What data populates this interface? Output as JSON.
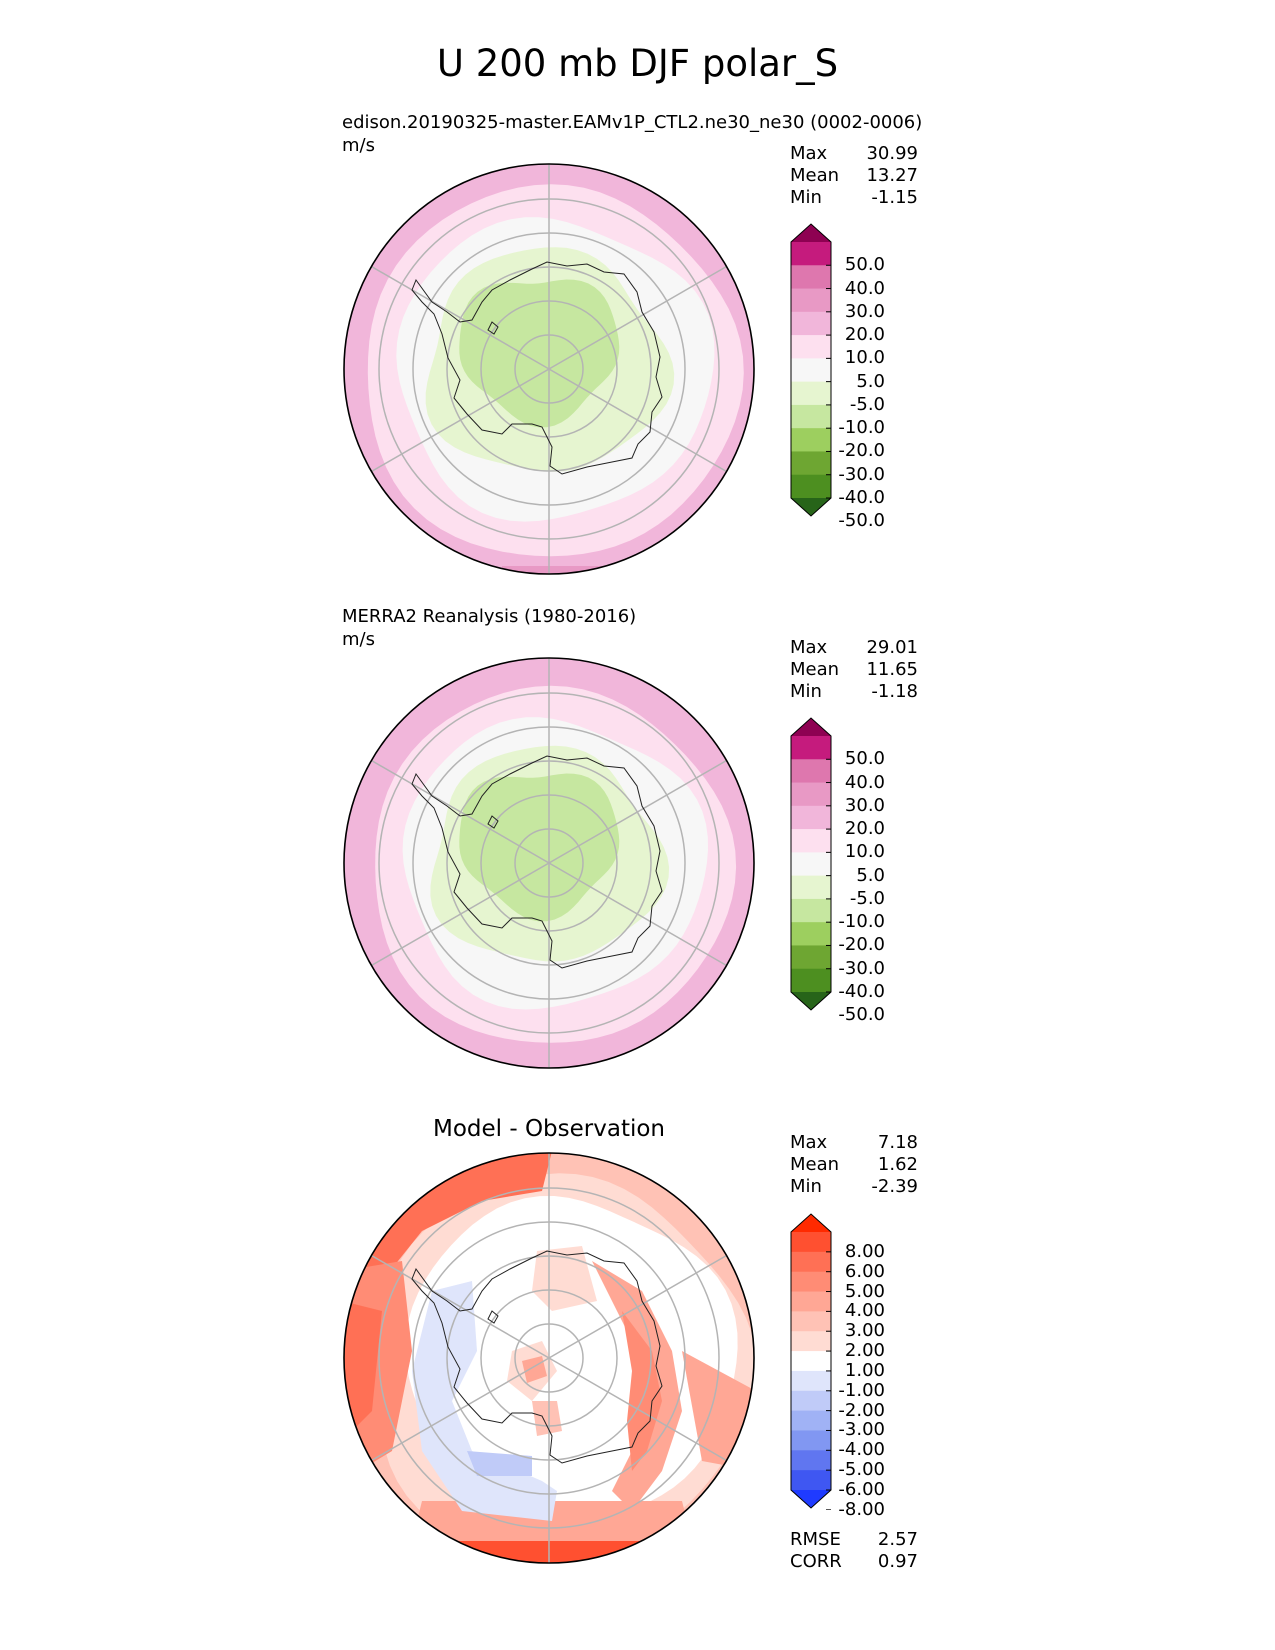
{
  "figure": {
    "title": "U 200 mb DJF polar_S"
  },
  "panels": [
    {
      "id": "test",
      "title": "edison.20190325-master.EAMv1P_CTL2.ne30_ne30 (0002-0006)",
      "units": "m/s",
      "stats": [
        {
          "label": "Max",
          "value": "30.99"
        },
        {
          "label": "Mean",
          "value": "13.27"
        },
        {
          "label": "Min",
          "value": "-1.15"
        }
      ]
    },
    {
      "id": "ref",
      "title": "MERRA2 Reanalysis (1980-2016)",
      "units": "m/s",
      "stats": [
        {
          "label": "Max",
          "value": "29.01"
        },
        {
          "label": "Mean",
          "value": "11.65"
        },
        {
          "label": "Min",
          "value": "-1.18"
        }
      ]
    },
    {
      "id": "diff",
      "title": "Model - Observation",
      "units": "",
      "stats": [
        {
          "label": "Max",
          "value": "7.18"
        },
        {
          "label": "Mean",
          "value": "1.62"
        },
        {
          "label": "Min",
          "value": "-2.39"
        }
      ],
      "metrics": [
        {
          "label": "RMSE",
          "value": "2.57"
        },
        {
          "label": "CORR",
          "value": "0.97"
        }
      ]
    }
  ],
  "colorbars": {
    "field": {
      "ticks": [
        "50.0",
        "40.0",
        "30.0",
        "20.0",
        "10.0",
        "5.0",
        "-5.0",
        "-10.0",
        "-20.0",
        "-30.0",
        "-40.0",
        "-50.0"
      ],
      "colors": [
        "#8e0152",
        "#c51b7d",
        "#de77ae",
        "#e899c5",
        "#f1b6da",
        "#fde0ef",
        "#f7f7f7",
        "#e6f5d0",
        "#c6e7a0",
        "#9dcf5f",
        "#6ea632",
        "#4d8f20",
        "#276419"
      ]
    },
    "diff": {
      "ticks": [
        "8.00",
        "6.00",
        "5.00",
        "4.00",
        "3.00",
        "2.00",
        "1.00",
        "-1.00",
        "-2.00",
        "-3.00",
        "-4.00",
        "-5.00",
        "-6.00",
        "-8.00"
      ],
      "colors": [
        "#ff2a00",
        "#ff5030",
        "#ff7055",
        "#ff8c75",
        "#ffa795",
        "#ffc2b5",
        "#ffdcd3",
        "#ffffff",
        "#dfe5fb",
        "#c0cbf8",
        "#a0b2f5",
        "#8197f2",
        "#6076f0",
        "#3f57f2",
        "#1f3bff"
      ]
    }
  },
  "chart_data": [
    {
      "type": "heatmap",
      "title": "edison.20190325-master.EAMv1P_CTL2.ne30_ne30 (0002-0006)",
      "units": "m/s",
      "projection": "south-polar",
      "levels": [
        -50,
        -40,
        -30,
        -20,
        -10,
        -5,
        5,
        10,
        20,
        30,
        40,
        50
      ],
      "max": 30.99,
      "mean": 13.27,
      "min": -1.15,
      "zonal_bands": [
        {
          "value_range": [
            -5,
            5
          ],
          "outer_lat": -70
        },
        {
          "value_range": [
            5,
            10
          ],
          "outer_lat": -60
        },
        {
          "value_range": [
            10,
            20
          ],
          "outer_lat": -48
        },
        {
          "value_range": [
            20,
            30
          ],
          "outer_lat": -40
        }
      ]
    },
    {
      "type": "heatmap",
      "title": "MERRA2 Reanalysis (1980-2016)",
      "units": "m/s",
      "projection": "south-polar",
      "levels": [
        -50,
        -40,
        -30,
        -20,
        -10,
        -5,
        5,
        10,
        20,
        30,
        40,
        50
      ],
      "max": 29.01,
      "mean": 11.65,
      "min": -1.18,
      "zonal_bands": [
        {
          "value_range": [
            -5,
            5
          ],
          "outer_lat": -72
        },
        {
          "value_range": [
            5,
            10
          ],
          "outer_lat": -62
        },
        {
          "value_range": [
            10,
            20
          ],
          "outer_lat": -46
        },
        {
          "value_range": [
            20,
            30
          ],
          "outer_lat": -40
        }
      ]
    },
    {
      "type": "heatmap",
      "title": "Model - Observation",
      "projection": "south-polar",
      "levels": [
        -8,
        -6,
        -5,
        -4,
        -3,
        -2,
        -1,
        1,
        2,
        3,
        4,
        5,
        6,
        8
      ],
      "max": 7.18,
      "mean": 1.62,
      "min": -2.39,
      "rmse": 2.57,
      "corr": 0.97
    }
  ]
}
